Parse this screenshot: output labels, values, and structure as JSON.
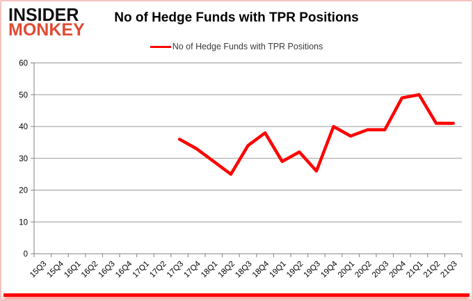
{
  "brand": {
    "line1": "INSIDER",
    "line2": "MONKEY",
    "color": "#e04b35"
  },
  "header": {
    "title": "No of Hedge Funds with TPR Positions"
  },
  "legend": {
    "label": "No of Hedge Funds with TPR Positions",
    "line_color": "#fe0000"
  },
  "chart_data": {
    "type": "line",
    "title": "No of Hedge Funds with TPR Positions",
    "categories": [
      "15Q3",
      "15Q4",
      "16Q1",
      "16Q2",
      "16Q3",
      "16Q4",
      "17Q1",
      "17Q2",
      "17Q3",
      "17Q4",
      "18Q1",
      "18Q2",
      "18Q3",
      "18Q4",
      "19Q1",
      "19Q2",
      "19Q3",
      "19Q4",
      "20Q1",
      "20Q2",
      "20Q3",
      "20Q4",
      "21Q1",
      "21Q2",
      "21Q3"
    ],
    "series": [
      {
        "name": "No of Hedge Funds with TPR Positions",
        "color": "#fe0000",
        "values": [
          null,
          null,
          null,
          null,
          null,
          null,
          null,
          null,
          36,
          33,
          29,
          25,
          34,
          38,
          29,
          32,
          26,
          40,
          37,
          39,
          39,
          49,
          50,
          41,
          41
        ]
      }
    ],
    "ylim": [
      0,
      60
    ],
    "yticks": [
      0,
      10,
      20,
      30,
      40,
      50,
      60
    ],
    "grid": true,
    "legend_position": "top",
    "gridline_color": "#999999",
    "axis_color": "#808080",
    "tick_label_color": "#000000"
  }
}
